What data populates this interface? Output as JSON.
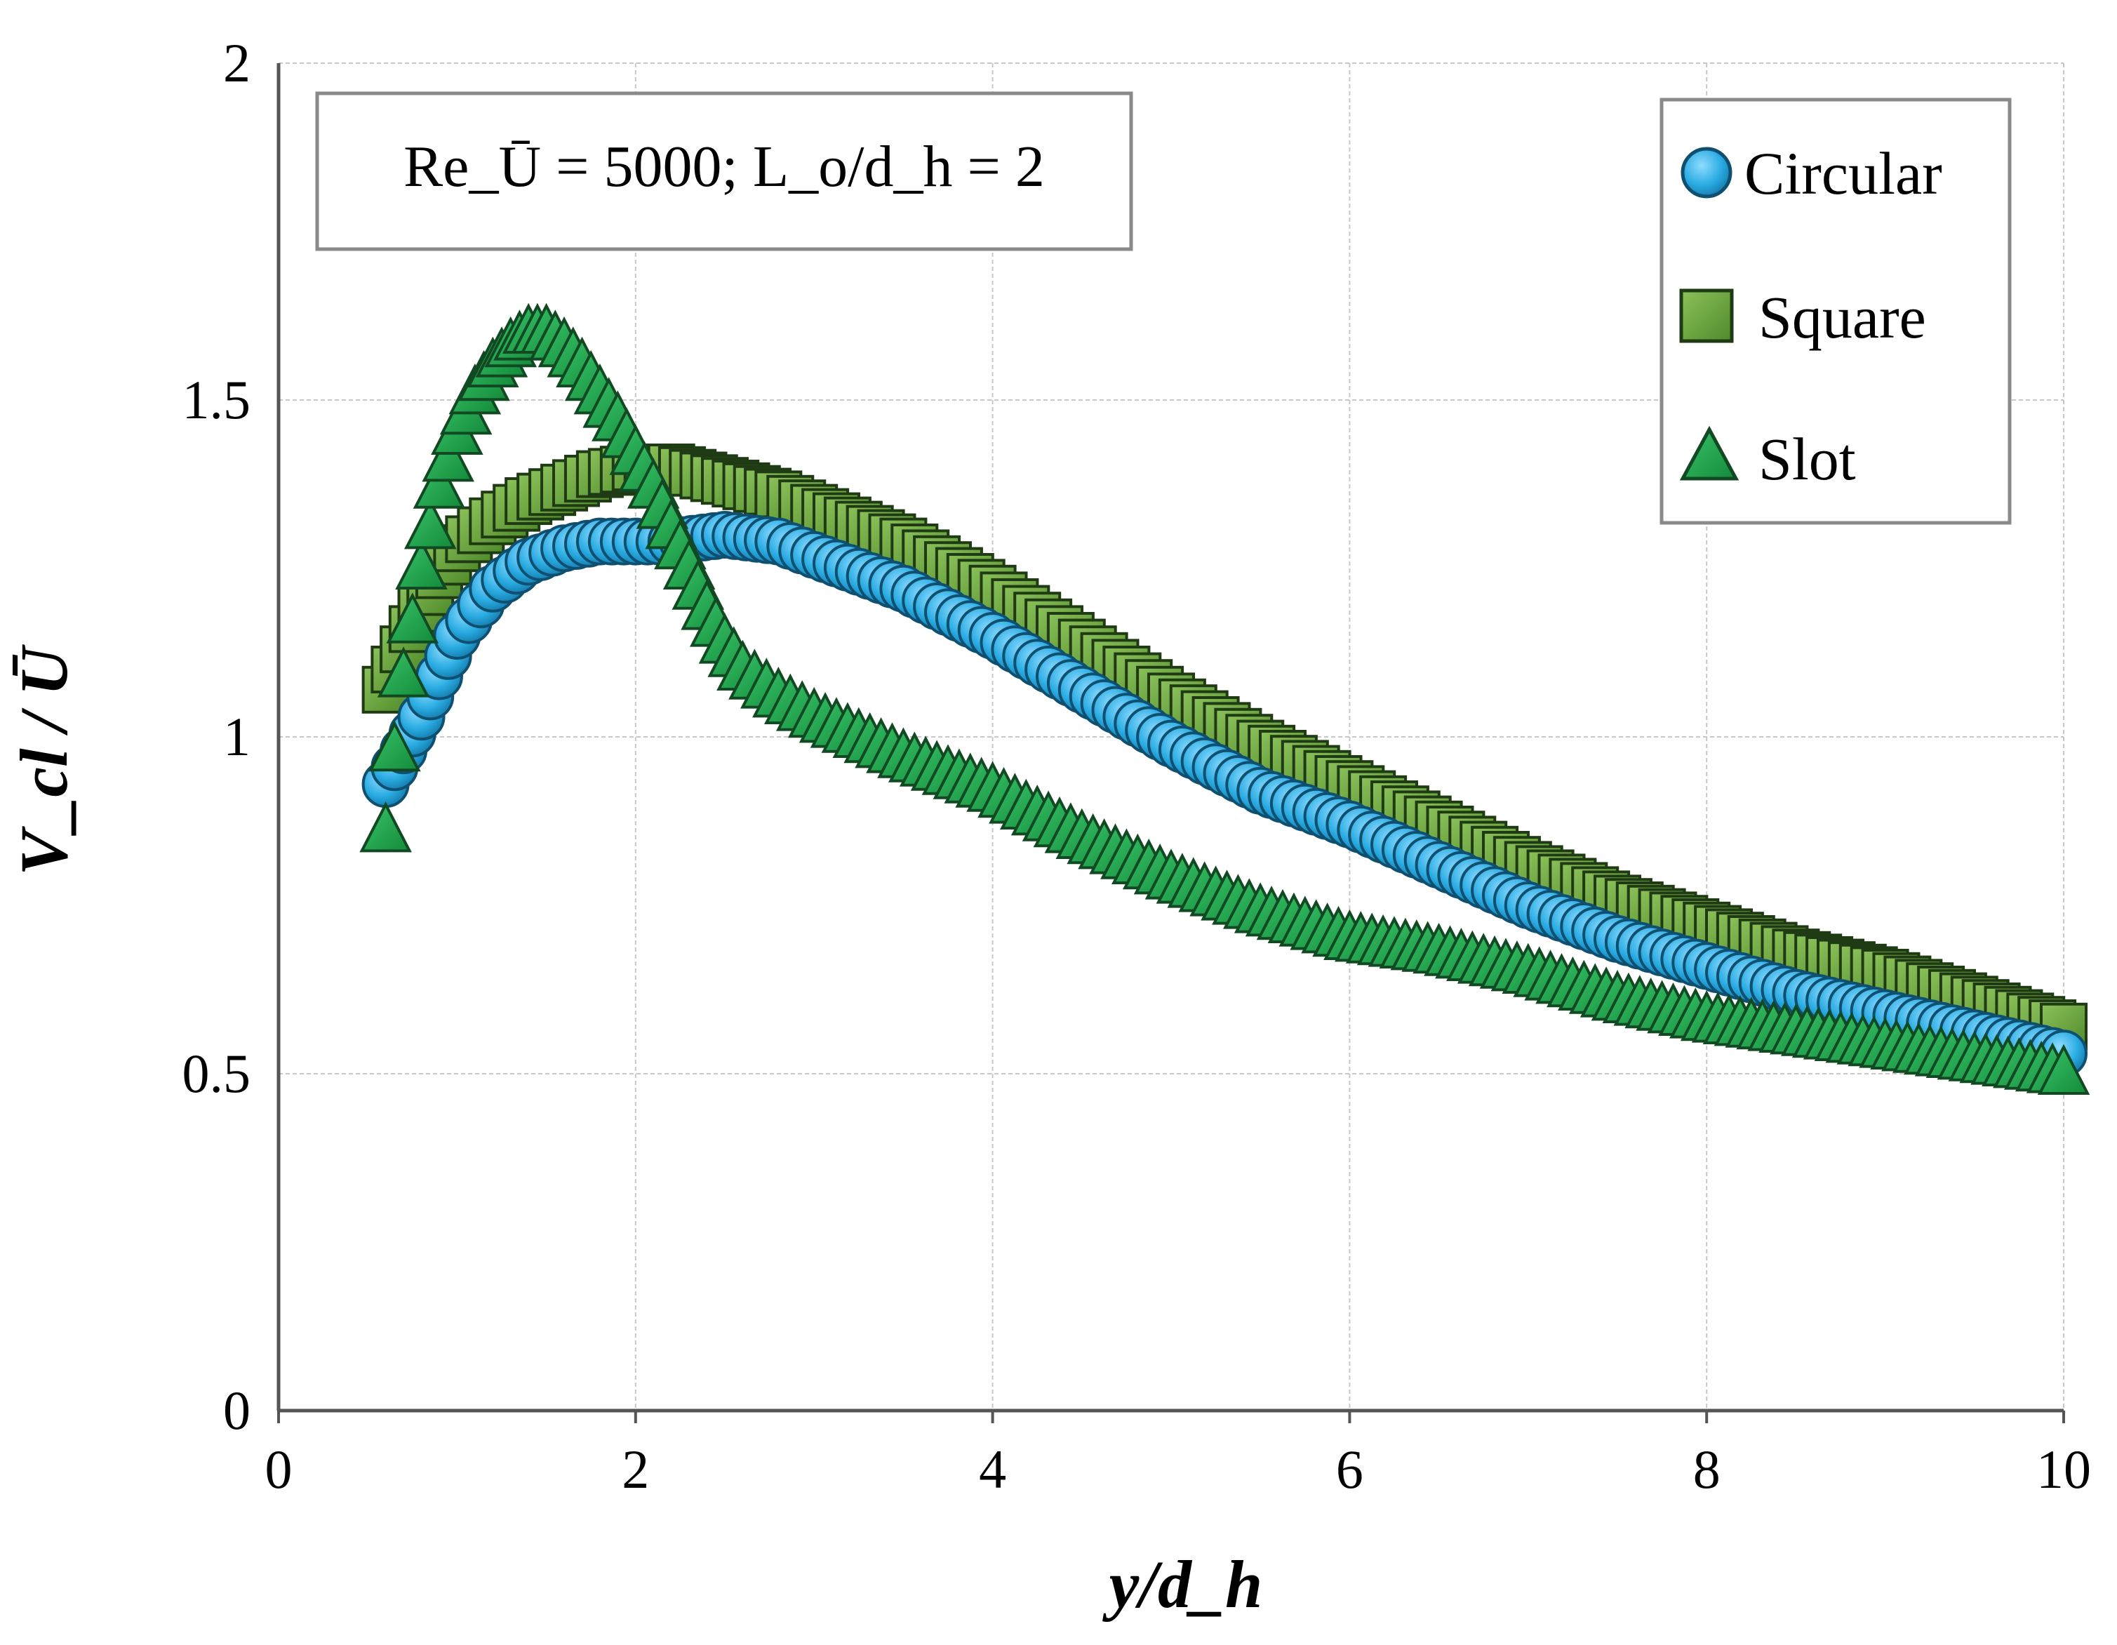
{
  "chart_data": {
    "type": "scatter",
    "title": "",
    "xlabel": "y/d_h",
    "ylabel": "V_cl / Ū",
    "xlim": [
      0,
      10
    ],
    "ylim": [
      0,
      2
    ],
    "x_ticks": [
      "0",
      "2",
      "4",
      "6",
      "8",
      "10"
    ],
    "y_ticks": [
      "0",
      "0.5",
      "1",
      "1.5",
      "2"
    ],
    "grid": true,
    "legend_position": "top-right",
    "annotation": "Re_Ū = 5000; L_o/d_h = 2",
    "colors": {
      "circular": "#29abe2",
      "square": "#6aa33a",
      "slot": "#1fa34a",
      "outline": "#1f3b2a"
    },
    "series": [
      {
        "name": "Circular",
        "marker": "circle",
        "x": [
          0.6,
          0.7,
          0.8,
          0.9,
          1.0,
          1.2,
          1.4,
          1.6,
          1.8,
          2.0,
          2.2,
          2.5,
          2.8,
          3.0,
          3.5,
          4.0,
          4.5,
          5.0,
          5.5,
          6.0,
          6.5,
          7.0,
          7.5,
          8.0,
          8.5,
          9.0,
          9.5,
          10.0
        ],
        "y": [
          0.93,
          0.98,
          1.03,
          1.09,
          1.15,
          1.22,
          1.26,
          1.28,
          1.29,
          1.29,
          1.29,
          1.3,
          1.29,
          1.27,
          1.22,
          1.15,
          1.07,
          0.99,
          0.92,
          0.87,
          0.81,
          0.75,
          0.7,
          0.66,
          0.62,
          0.59,
          0.56,
          0.53
        ]
      },
      {
        "name": "Square",
        "marker": "square",
        "x": [
          0.6,
          0.7,
          0.8,
          0.9,
          1.0,
          1.2,
          1.4,
          1.6,
          1.8,
          2.0,
          2.2,
          2.5,
          2.8,
          3.0,
          3.5,
          4.0,
          4.5,
          5.0,
          5.5,
          6.0,
          6.5,
          7.0,
          7.5,
          8.0,
          8.5,
          9.0,
          9.5,
          10.0
        ],
        "y": [
          1.07,
          1.13,
          1.19,
          1.24,
          1.28,
          1.32,
          1.35,
          1.37,
          1.39,
          1.4,
          1.4,
          1.38,
          1.36,
          1.34,
          1.29,
          1.22,
          1.14,
          1.06,
          0.99,
          0.93,
          0.87,
          0.81,
          0.76,
          0.72,
          0.68,
          0.65,
          0.61,
          0.57
        ]
      },
      {
        "name": "Slot",
        "marker": "triangle",
        "x": [
          0.6,
          0.65,
          0.7,
          0.75,
          0.8,
          0.9,
          1.0,
          1.1,
          1.2,
          1.3,
          1.4,
          1.5,
          1.6,
          1.7,
          1.8,
          1.9,
          2.0,
          2.1,
          2.2,
          2.3,
          2.4,
          2.5,
          2.6,
          2.8,
          3.0,
          3.5,
          4.0,
          4.5,
          5.0,
          5.5,
          6.0,
          6.5,
          7.0,
          7.5,
          8.0,
          8.5,
          9.0,
          9.5,
          10.0
        ],
        "y": [
          0.86,
          0.98,
          1.09,
          1.17,
          1.25,
          1.37,
          1.45,
          1.51,
          1.55,
          1.58,
          1.6,
          1.6,
          1.58,
          1.55,
          1.51,
          1.47,
          1.42,
          1.37,
          1.31,
          1.25,
          1.19,
          1.14,
          1.1,
          1.06,
          1.03,
          0.97,
          0.92,
          0.85,
          0.79,
          0.74,
          0.7,
          0.68,
          0.65,
          0.61,
          0.58,
          0.56,
          0.54,
          0.52,
          0.5
        ]
      }
    ]
  }
}
